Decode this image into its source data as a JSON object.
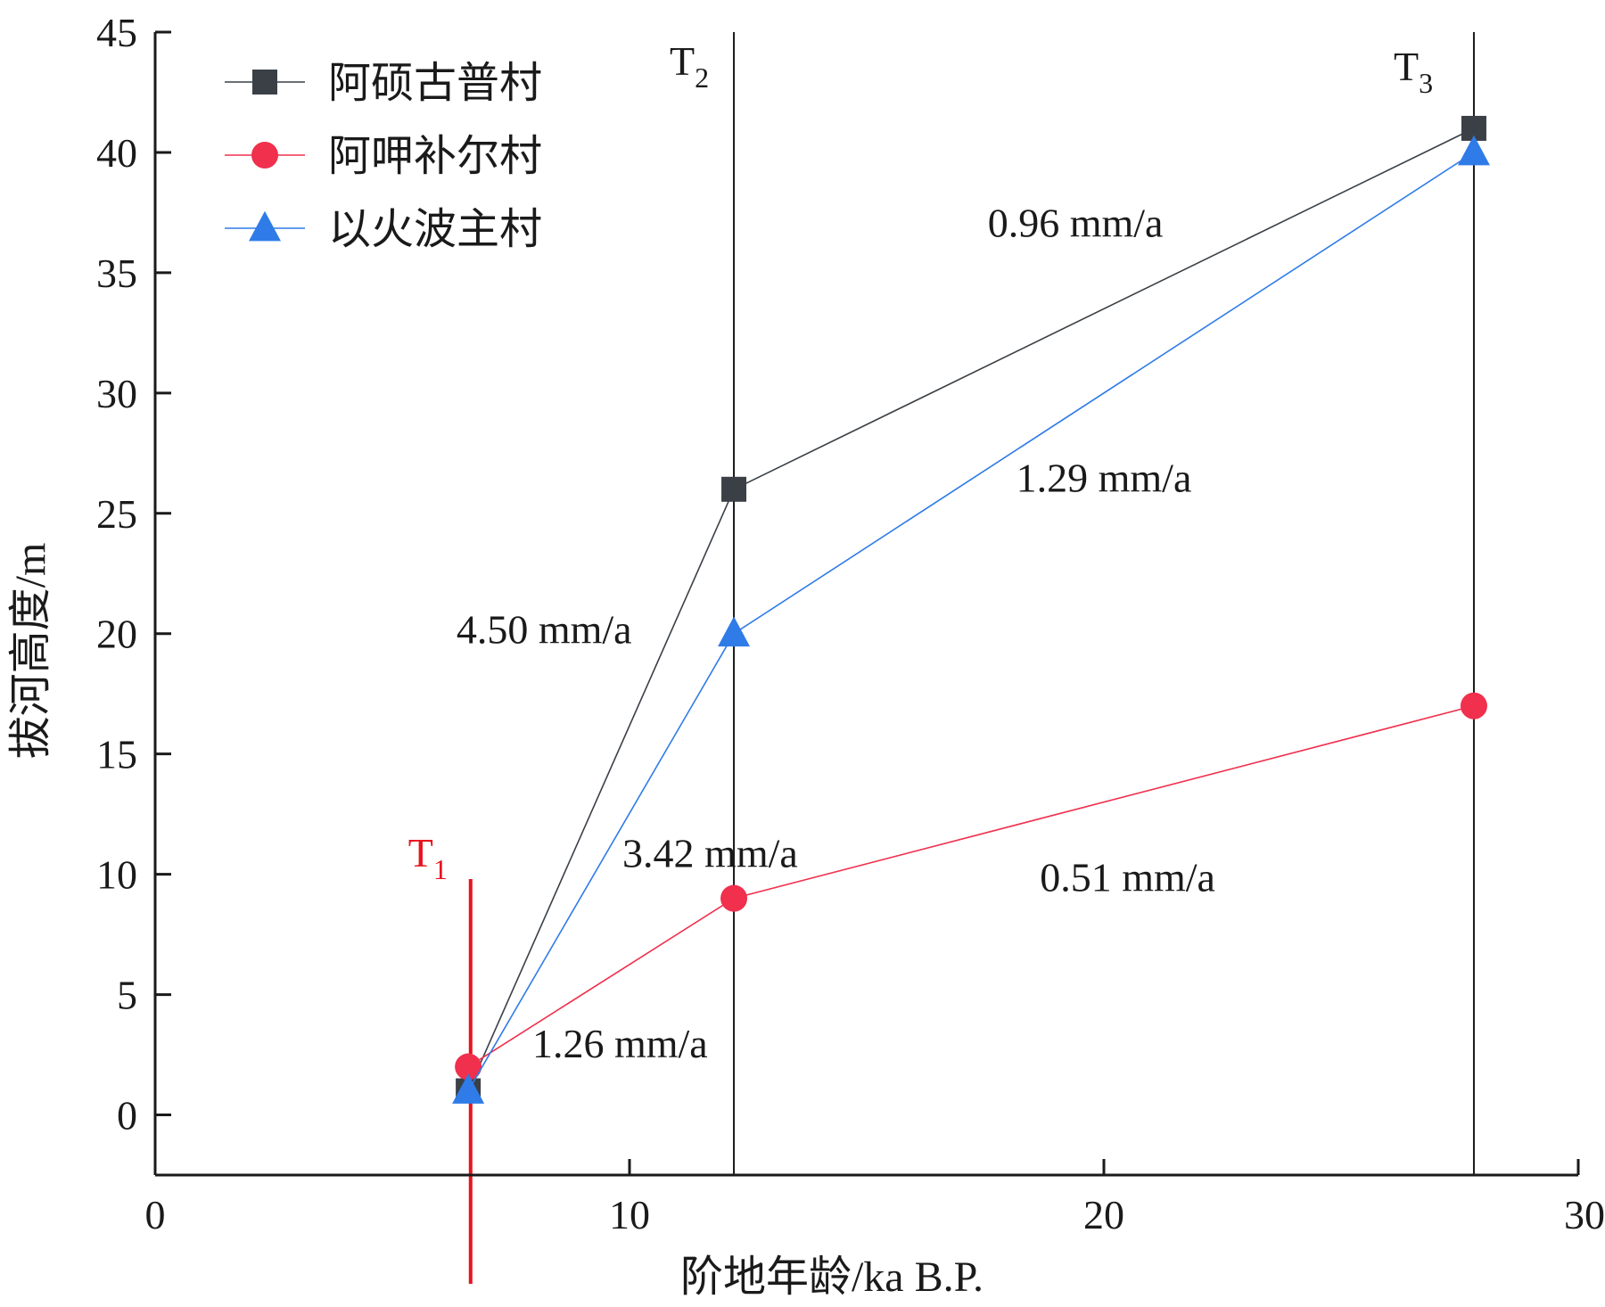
{
  "chart_data": {
    "type": "line",
    "xlabel": "阶地年龄/ka B.P.",
    "ylabel": "拔河高度/m",
    "xlim": [
      0,
      30
    ],
    "ylim": [
      -2.5,
      45
    ],
    "xticks": [
      0,
      10,
      20,
      30
    ],
    "yticks": [
      0,
      5,
      10,
      15,
      20,
      25,
      30,
      35,
      40,
      45
    ],
    "grid": false,
    "legend_position": "top-left",
    "series": [
      {
        "name": "阿硕古普村",
        "marker": "square",
        "color": "#3a4046",
        "x": [
          6.6,
          12.2,
          27.8
        ],
        "y": [
          1,
          26,
          41
        ]
      },
      {
        "name": "阿呷补尔村",
        "marker": "circle",
        "color": "#f0304d",
        "x": [
          6.6,
          12.2,
          27.8
        ],
        "y": [
          2,
          9,
          17
        ]
      },
      {
        "name": "以火波主村",
        "marker": "triangle",
        "color": "#2f7be8",
        "x": [
          6.6,
          12.2,
          27.8
        ],
        "y": [
          1,
          20,
          40
        ]
      }
    ],
    "terraces": [
      {
        "label": "T",
        "sub": "1",
        "x": 6.65,
        "y_top": 9.8,
        "color": "#e8141e"
      },
      {
        "label": "T",
        "sub": "2",
        "x": 12.2,
        "y_top": 45,
        "color": "#1a1a1a"
      },
      {
        "label": "T",
        "sub": "3",
        "x": 27.8,
        "y_top": 45,
        "color": "#1a1a1a"
      }
    ],
    "annotations": [
      {
        "text": "0.96 mm/a",
        "x": 19.4,
        "y": 36.5
      },
      {
        "text": "1.29 mm/a",
        "x": 20.0,
        "y": 25.9
      },
      {
        "text": "4.50 mm/a",
        "x": 8.2,
        "y": 19.6
      },
      {
        "text": "3.42 mm/a",
        "x": 11.7,
        "y": 10.3
      },
      {
        "text": "0.51 mm/a",
        "x": 20.5,
        "y": 9.3
      },
      {
        "text": "1.26 mm/a",
        "x": 9.8,
        "y": 2.4
      }
    ]
  }
}
